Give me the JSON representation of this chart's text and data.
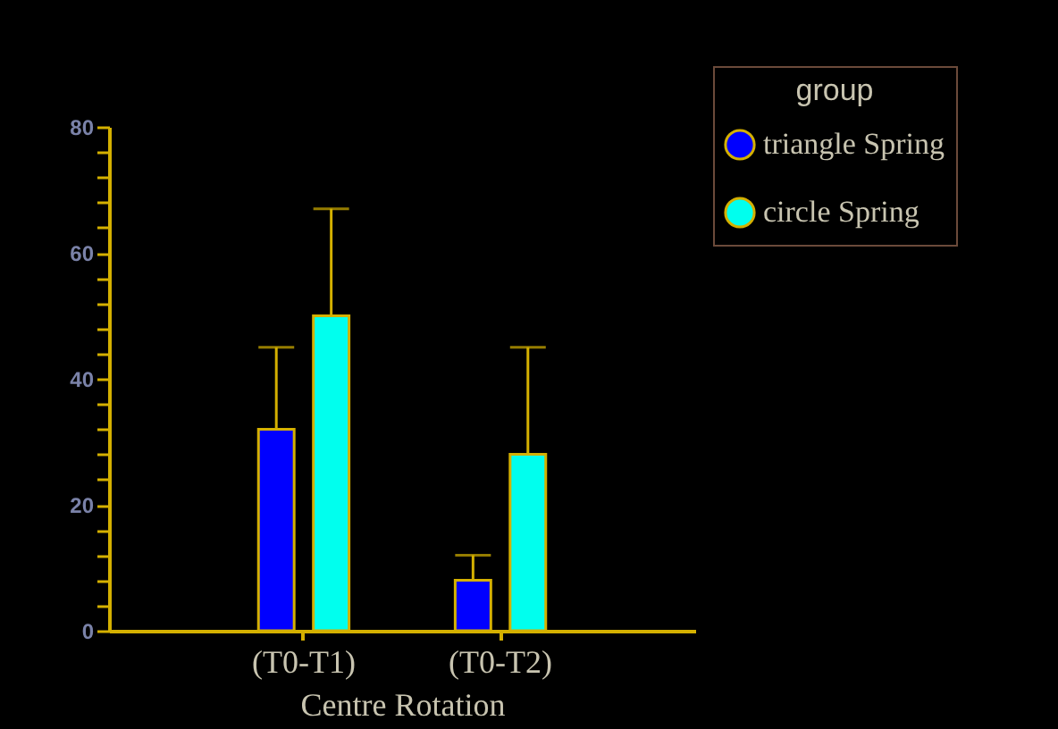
{
  "chart_data": {
    "type": "bar",
    "xlabel": "Centre Rotation",
    "legend_title": "group",
    "legend": "top right",
    "categories": [
      "(T0-T1)",
      "(T0-T2)"
    ],
    "series": [
      {
        "name": "triangle Spring",
        "color": "#0000ff",
        "values": [
          32,
          8
        ],
        "errors": [
          [
            32,
            45
          ],
          [
            8,
            12
          ]
        ]
      },
      {
        "name": "circle Spring",
        "color": "#00ffee",
        "values": [
          50,
          28
        ],
        "errors": [
          [
            50,
            67
          ],
          [
            28,
            45
          ]
        ]
      }
    ],
    "ylim": [
      0,
      80
    ],
    "yticks": [
      0,
      {
        "value": 4,
        "label": null
      },
      {
        "value": 8,
        "label": null
      },
      {
        "value": 12,
        "label": null
      },
      {
        "value": 16,
        "label": null
      },
      20,
      {
        "value": 24,
        "label": null
      },
      {
        "value": 28,
        "label": null
      },
      {
        "value": 32,
        "label": null
      },
      {
        "value": 36,
        "label": null
      },
      40,
      {
        "value": 44,
        "label": null
      },
      {
        "value": 48,
        "label": null
      },
      {
        "value": 52,
        "label": null
      },
      {
        "value": 56,
        "label": null
      },
      60,
      {
        "value": 64,
        "label": null
      },
      {
        "value": 68,
        "label": null
      },
      {
        "value": 72,
        "label": null
      },
      {
        "value": 76,
        "label": null
      },
      80
    ]
  }
}
